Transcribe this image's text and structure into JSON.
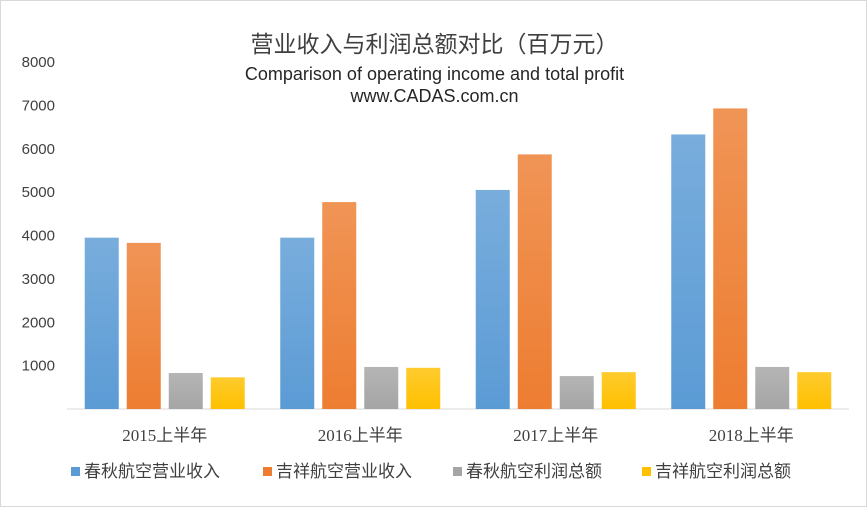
{
  "chart_data": {
    "type": "bar",
    "title": "营业收入与利润总额对比（百万元）",
    "subtitle_line1": "Comparison of operating income and total profit",
    "subtitle_line2": "www.CADAS.com.cn",
    "categories": [
      "2015上半年",
      "2016上半年",
      "2017上半年",
      "2018上半年"
    ],
    "series": [
      {
        "name": "春秋航空营业收入",
        "color": "#5b9bd5",
        "values": [
          3950,
          3950,
          5050,
          6330
        ]
      },
      {
        "name": "吉祥航空营业收入",
        "color": "#ed7d31",
        "values": [
          3830,
          4770,
          5870,
          6930
        ]
      },
      {
        "name": "春秋航空利润总额",
        "color": "#a5a5a5",
        "values": [
          830,
          970,
          760,
          970
        ]
      },
      {
        "name": "吉祥航空利润总额",
        "color": "#ffc000",
        "values": [
          730,
          950,
          850,
          850
        ]
      }
    ],
    "yticks": [
      1000,
      2000,
      3000,
      4000,
      5000,
      6000,
      7000,
      8000
    ],
    "ylim": [
      0,
      8000
    ],
    "grid": false,
    "legend_position": "bottom"
  }
}
